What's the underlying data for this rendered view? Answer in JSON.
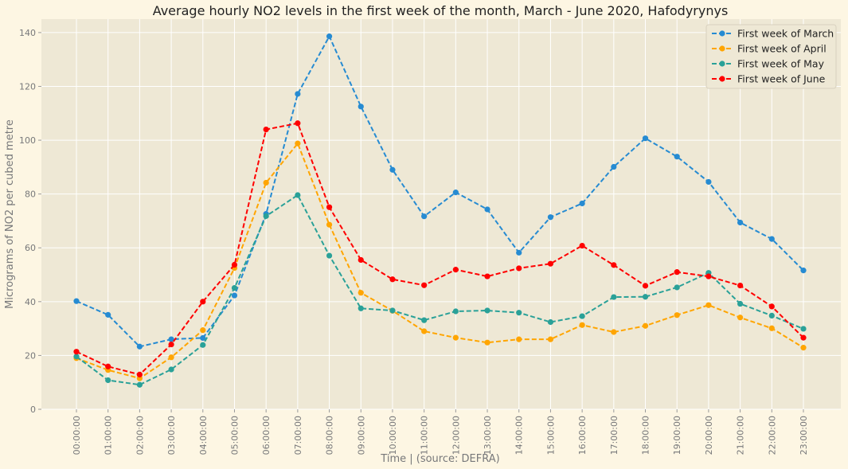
{
  "chart_data": {
    "type": "line",
    "title": "Average hourly NO2 levels in the first week of the month, March - June 2020, Hafodyrynys",
    "xlabel": "Time | (source: DEFRA)",
    "ylabel": "Micrograms of NO2 per cubed metre",
    "ylim": [
      0,
      145
    ],
    "yticks": [
      "0",
      "20",
      "40",
      "60",
      "80",
      "100",
      "120",
      "140"
    ],
    "grid": true,
    "legend_position": "top-right",
    "categories": [
      "00:00:00",
      "01:00:00",
      "02:00:00",
      "03:00:00",
      "04:00:00",
      "05:00:00",
      "06:00:00",
      "07:00:00",
      "08:00:00",
      "09:00:00",
      "10:00:00",
      "11:00:00",
      "12:00:00",
      "13:00:00",
      "14:00:00",
      "15:00:00",
      "16:00:00",
      "17:00:00",
      "18:00:00",
      "19:00:00",
      "20:00:00",
      "21:00:00",
      "22:00:00",
      "23:00:00"
    ],
    "series": [
      {
        "name": "First week of March",
        "color": "#268bd2",
        "values": [
          40.2,
          35.1,
          23.3,
          26.0,
          26.5,
          42.3,
          72.6,
          117.2,
          138.6,
          112.5,
          89.0,
          71.7,
          80.6,
          74.3,
          58.2,
          71.4,
          76.5,
          90.1,
          100.7,
          93.9,
          84.5,
          69.4,
          63.3,
          51.6
        ]
      },
      {
        "name": "First week of April",
        "color": "#ffa500",
        "values": [
          19.0,
          14.6,
          11.5,
          19.3,
          29.4,
          52.5,
          84.2,
          98.8,
          68.6,
          43.3,
          36.6,
          29.0,
          26.6,
          24.8,
          26.0,
          26.0,
          31.3,
          28.7,
          31.0,
          35.0,
          38.7,
          34.1,
          30.1,
          22.9
        ]
      },
      {
        "name": "First week of May",
        "color": "#2aa198",
        "values": [
          19.6,
          10.8,
          9.1,
          14.8,
          23.9,
          45.1,
          71.8,
          79.6,
          57.1,
          37.5,
          36.7,
          33.1,
          36.4,
          36.7,
          35.9,
          32.4,
          34.6,
          41.7,
          41.8,
          45.3,
          50.7,
          39.2,
          34.8,
          29.9
        ]
      },
      {
        "name": "First week of June",
        "color": "#ff0000",
        "values": [
          21.4,
          15.9,
          12.9,
          24.1,
          40.0,
          53.7,
          104.0,
          106.3,
          75.1,
          55.5,
          48.3,
          46.1,
          51.9,
          49.4,
          52.4,
          54.1,
          60.8,
          53.6,
          45.9,
          51.0,
          49.4,
          46.0,
          38.2,
          26.6
        ]
      }
    ]
  }
}
